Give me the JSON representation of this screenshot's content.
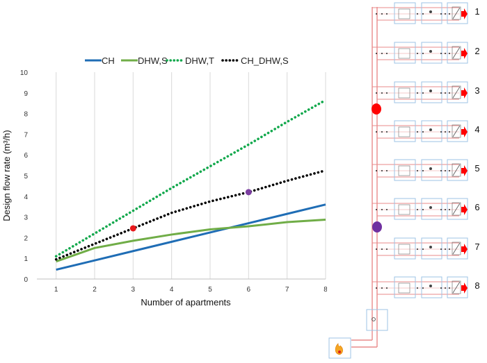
{
  "chart_data": {
    "type": "line",
    "title": "",
    "xlabel": "Number of apartments",
    "ylabel": "Design flow rate (m³/h)",
    "xlim": [
      0.5,
      8
    ],
    "ylim": [
      0,
      10
    ],
    "x_ticks": [
      "1",
      "2",
      "3",
      "4",
      "5",
      "6",
      "7",
      "8"
    ],
    "y_ticks": [
      "0",
      "1",
      "2",
      "3",
      "4",
      "5",
      "6",
      "7",
      "8",
      "9",
      "10"
    ],
    "grid": "vertical",
    "legend_position": "top",
    "x": [
      1,
      2,
      3,
      4,
      5,
      6,
      7,
      8
    ],
    "series": [
      {
        "name": "CH",
        "style": "solid",
        "color": "#1f6db5",
        "values": [
          0.45,
          0.9,
          1.35,
          1.8,
          2.25,
          2.7,
          3.15,
          3.6
        ]
      },
      {
        "name": "DHW,S",
        "style": "solid",
        "color": "#70ad47",
        "values": [
          0.85,
          1.5,
          1.85,
          2.15,
          2.4,
          2.55,
          2.75,
          2.87
        ]
      },
      {
        "name": "DHW,T",
        "style": "dotted",
        "color": "#11a84c",
        "values": [
          1.1,
          2.2,
          3.3,
          4.4,
          5.45,
          6.5,
          7.6,
          8.65
        ]
      },
      {
        "name": "CH_DHW,S",
        "style": "dotted",
        "color": "#000000",
        "values": [
          0.95,
          1.7,
          2.45,
          3.2,
          3.75,
          4.2,
          4.75,
          5.25
        ]
      }
    ],
    "markers": [
      {
        "x": 3,
        "y": 2.45,
        "color": "#e8191c"
      },
      {
        "x": 6,
        "y": 4.2,
        "color": "#7b3ea0"
      }
    ]
  },
  "schematic": {
    "apartment_labels": [
      "1",
      "2",
      "3",
      "4",
      "5",
      "6",
      "7",
      "8"
    ],
    "red_marker_color": "#ff0000",
    "purple_marker_color": "#7030a0",
    "riser_color": "#e98a8a"
  }
}
